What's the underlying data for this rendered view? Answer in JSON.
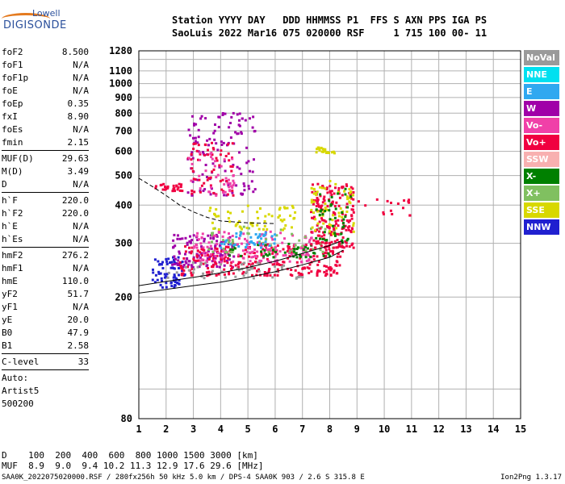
{
  "logo": {
    "line1": "Lowell",
    "line2": "DIGISONDE"
  },
  "header": {
    "row1": "Station YYYY DAY   DDD HHMMSS P1  FFS S AXN PPS IGA PS",
    "row2": "SaoLuis 2022 Mar16 075 020000 RSF     1 715 100 00- 11"
  },
  "params": {
    "group1": [
      {
        "label": "foF2",
        "value": "8.500"
      },
      {
        "label": "foF1",
        "value": "N/A"
      },
      {
        "label": "foF1p",
        "value": "N/A"
      },
      {
        "label": "foE",
        "value": "N/A"
      },
      {
        "label": "foEp",
        "value": "0.35"
      },
      {
        "label": "fxI",
        "value": "8.90"
      },
      {
        "label": "foEs",
        "value": "N/A"
      },
      {
        "label": "fmin",
        "value": "2.15"
      }
    ],
    "group2": [
      {
        "label": "MUF(D)",
        "value": "29.63"
      },
      {
        "label": "M(D)",
        "value": "3.49"
      },
      {
        "label": "D",
        "value": "N/A"
      }
    ],
    "group3": [
      {
        "label": "h`F",
        "value": "220.0"
      },
      {
        "label": "h`F2",
        "value": "220.0"
      },
      {
        "label": "h`E",
        "value": "N/A"
      },
      {
        "label": "h`Es",
        "value": "N/A"
      }
    ],
    "group4": [
      {
        "label": "hmF2",
        "value": "276.2"
      },
      {
        "label": "hmF1",
        "value": "N/A"
      },
      {
        "label": "hmE",
        "value": "110.0"
      },
      {
        "label": "yF2",
        "value": "51.7"
      },
      {
        "label": "yF1",
        "value": "N/A"
      },
      {
        "label": "yE",
        "value": "20.0"
      },
      {
        "label": "B0",
        "value": "47.9"
      },
      {
        "label": "B1",
        "value": "2.58"
      }
    ],
    "group5": [
      {
        "label": "C-level",
        "value": "33"
      }
    ],
    "auto": [
      "Auto:",
      "Artist5",
      "500200"
    ]
  },
  "legend": [
    {
      "label": "NoVal",
      "color": "#9a9a9a"
    },
    {
      "label": "NNE",
      "color": "#00e0f0"
    },
    {
      "label": "E",
      "color": "#30a8f0"
    },
    {
      "label": "W",
      "color": "#a000a8"
    },
    {
      "label": "Vo-",
      "color": "#f040a8"
    },
    {
      "label": "Vo+",
      "color": "#f00040"
    },
    {
      "label": "SSW",
      "color": "#f8b0b0"
    },
    {
      "label": "X-",
      "color": "#008000"
    },
    {
      "label": "X+",
      "color": "#80c060"
    },
    {
      "label": "SSE",
      "color": "#d8d800"
    },
    {
      "label": "NNW",
      "color": "#2020d0"
    }
  ],
  "distance_table": {
    "row1": "D    100  200  400  600  800 1000 1500 3000 [km]",
    "row2": "MUF  8.9  9.0  9.4 10.2 11.3 12.9 17.6 29.6 [MHz]"
  },
  "footer": "SAA0K_2022075020000.RSF / 280fx256h 50 kHz 5.0 km / DPS-4 SAA0K 903 / 2.6 S 315.8 E",
  "version": "Ion2Png 1.3.17",
  "chart_data": {
    "type": "scatter",
    "xlim": [
      1,
      15
    ],
    "ylim": [
      80,
      1280
    ],
    "x_ticks": [
      1,
      2,
      3,
      4,
      5,
      6,
      7,
      8,
      9,
      10,
      11,
      12,
      13,
      14,
      15
    ],
    "y_ticks": [
      80,
      200,
      300,
      400,
      500,
      600,
      700,
      800,
      900,
      1000,
      1100,
      1280
    ],
    "y_scale": "log",
    "grid": true,
    "ionogram_clusters": [
      {
        "f": [
          1.5,
          2.7
        ],
        "h": [
          215,
          270
        ],
        "color": "#2020d0",
        "n": 70
      },
      {
        "f": [
          2.2,
          4.5
        ],
        "h": [
          250,
          320
        ],
        "color": "#a000a8",
        "n": 120
      },
      {
        "f": [
          2.5,
          8.5
        ],
        "h": [
          235,
          300
        ],
        "color": "#f00040",
        "n": 260
      },
      {
        "f": [
          3.0,
          7.5
        ],
        "h": [
          260,
          330
        ],
        "color": "#f040a8",
        "n": 150
      },
      {
        "f": [
          3.5,
          8.5
        ],
        "h": [
          280,
          340
        ],
        "color": "#80c060",
        "n": 60
      },
      {
        "f": [
          4.0,
          8.0
        ],
        "h": [
          270,
          300
        ],
        "color": "#008000",
        "n": 40
      },
      {
        "f": [
          4.0,
          6.0
        ],
        "h": [
          290,
          330
        ],
        "color": "#30a8f0",
        "n": 40
      },
      {
        "f": [
          7.3,
          8.9
        ],
        "h": [
          290,
          470
        ],
        "color": "#f00040",
        "n": 180
      },
      {
        "f": [
          7.3,
          8.9
        ],
        "h": [
          320,
          480
        ],
        "color": "#d8d800",
        "n": 60
      },
      {
        "f": [
          7.5,
          8.8
        ],
        "h": [
          300,
          460
        ],
        "color": "#008000",
        "n": 40
      },
      {
        "f": [
          2.8,
          5.3
        ],
        "h": [
          430,
          800
        ],
        "color": "#a000a8",
        "n": 120
      },
      {
        "f": [
          2.8,
          4.5
        ],
        "h": [
          430,
          640
        ],
        "color": "#f00040",
        "n": 60
      },
      {
        "f": [
          2.8,
          4.5
        ],
        "h": [
          430,
          600
        ],
        "color": "#f040a8",
        "n": 40
      },
      {
        "f": [
          3.5,
          6.8
        ],
        "h": [
          330,
          400
        ],
        "color": "#d8d800",
        "n": 60
      },
      {
        "f": [
          1.6,
          2.6
        ],
        "h": [
          445,
          470
        ],
        "color": "#f00040",
        "n": 30
      },
      {
        "f": [
          7.5,
          8.2
        ],
        "h": [
          590,
          620
        ],
        "color": "#d8d800",
        "n": 20
      },
      {
        "f": [
          8.8,
          11.0
        ],
        "h": [
          370,
          420
        ],
        "color": "#f00040",
        "n": 20
      },
      {
        "f": [
          2.0,
          7.0
        ],
        "h": [
          230,
          260
        ],
        "color": "#9a9a9a",
        "n": 50
      }
    ],
    "traces": [
      {
        "style": "solid",
        "points": [
          [
            1,
            218
          ],
          [
            2,
            225
          ],
          [
            3,
            232
          ],
          [
            4,
            240
          ],
          [
            5,
            250
          ],
          [
            6,
            262
          ],
          [
            7,
            278
          ],
          [
            8,
            295
          ],
          [
            8.4,
            305
          ],
          [
            8.5,
            300
          ]
        ]
      },
      {
        "style": "solid",
        "points": [
          [
            1,
            206
          ],
          [
            2,
            212
          ],
          [
            3,
            218
          ],
          [
            4,
            224
          ],
          [
            5,
            232
          ],
          [
            6,
            242
          ],
          [
            7,
            255
          ],
          [
            8,
            270
          ],
          [
            8.5,
            285
          ]
        ]
      },
      {
        "style": "dashed",
        "points": [
          [
            1,
            490
          ],
          [
            1.5,
            460
          ],
          [
            2,
            430
          ],
          [
            2.5,
            400
          ],
          [
            3,
            380
          ],
          [
            3.5,
            365
          ],
          [
            4,
            355
          ],
          [
            5,
            350
          ],
          [
            6,
            348
          ]
        ]
      }
    ]
  }
}
